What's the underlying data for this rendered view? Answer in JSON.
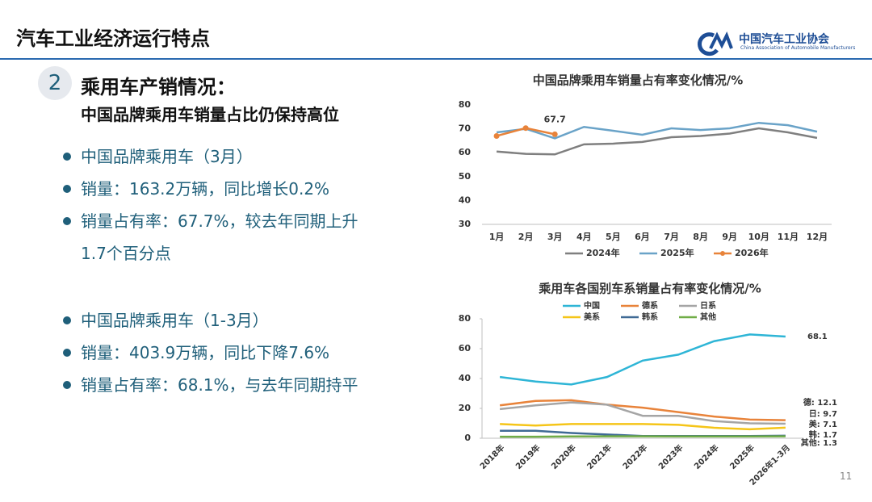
{
  "header": {
    "title": "汽车工业经济运行特点",
    "org_name": "中国汽车工业协会",
    "org_name_en": "China Association of Automobile Manufacturers"
  },
  "section": {
    "number": "2",
    "heading": "乘用车产销情况：",
    "subheading": "中国品牌乘用车销量占比仍保持高位"
  },
  "bullets": [
    "中国品牌乘用车（3月）",
    "销量：163.2万辆，同比增长0.2%",
    "销量占有率：67.7%，较去年同期上升1.7个百分点",
    "中国品牌乘用车（1-3月）",
    "销量：403.9万辆，同比下降7.6%",
    "销量占有率：68.1%，与去年同期持平"
  ],
  "page_number": "11",
  "chart_data": [
    {
      "type": "line",
      "title": "中国品牌乘用车销量占有率变化情况/%",
      "categories": [
        "1月",
        "2月",
        "3月",
        "4月",
        "5月",
        "6月",
        "7月",
        "8月",
        "9月",
        "10月",
        "11月",
        "12月"
      ],
      "ylim": [
        30,
        80
      ],
      "yticks": [
        30,
        40,
        50,
        60,
        70,
        80
      ],
      "grid": false,
      "legend": "bottom",
      "series": [
        {
          "name": "2024年",
          "color": "#7f7f7f",
          "markers": false,
          "values": [
            60.5,
            59.5,
            59.3,
            63.5,
            63.8,
            64.5,
            66.5,
            67,
            68,
            70.2,
            68.5,
            66.2
          ]
        },
        {
          "name": "2025年",
          "color": "#6aa3c8",
          "markers": false,
          "values": [
            68.5,
            70,
            66,
            70.8,
            69.2,
            67.5,
            70.2,
            69.5,
            70.2,
            72.5,
            71.5,
            68.8
          ]
        },
        {
          "name": "2026年",
          "color": "#e8833a",
          "markers": true,
          "values": [
            67,
            70.3,
            67.7,
            null,
            null,
            null,
            null,
            null,
            null,
            null,
            null,
            null
          ]
        }
      ]
    },
    {
      "type": "line",
      "title": "乘用车各国别车系销量占有率变化情况/%",
      "categories": [
        "2018年",
        "2019年",
        "2020年",
        "2021年",
        "2022年",
        "2023年",
        "2024年",
        "2025年",
        "2026年1-3月"
      ],
      "ylim": [
        0,
        80
      ],
      "yticks": [
        0,
        20,
        40,
        60,
        80
      ],
      "grid": false,
      "legend": "top",
      "series": [
        {
          "name": "中国",
          "color": "#2eb5d6",
          "values": [
            41,
            38,
            36,
            41,
            52,
            56,
            65,
            69.5,
            68.1
          ]
        },
        {
          "name": "德系",
          "color": "#e8833a",
          "values": [
            22,
            25,
            25.5,
            22.5,
            20.5,
            17.5,
            14.5,
            12.5,
            12.1
          ],
          "value_labels": [
            null,
            null,
            null,
            null,
            null,
            null,
            null,
            null,
            "德: 12.1"
          ]
        },
        {
          "name": "日系",
          "color": "#a5a5a5",
          "values": [
            19.5,
            22,
            24,
            22.5,
            15,
            15,
            11.5,
            10,
            9.7
          ],
          "value_labels": [
            null,
            null,
            null,
            null,
            null,
            null,
            null,
            null,
            "日: 9.7"
          ]
        },
        {
          "name": "美系",
          "color": "#f5c518",
          "values": [
            9.5,
            8.5,
            9.5,
            9.5,
            9.5,
            9,
            7,
            6,
            7.1
          ],
          "value_labels": [
            null,
            null,
            null,
            null,
            null,
            null,
            null,
            null,
            "美: 7.1"
          ]
        },
        {
          "name": "韩系",
          "color": "#3f6a95",
          "values": [
            5,
            5,
            3.5,
            2.5,
            1.5,
            1.5,
            1.5,
            1.5,
            1.7
          ],
          "value_labels": [
            null,
            null,
            null,
            null,
            null,
            null,
            null,
            null,
            "韩: 1.7"
          ]
        },
        {
          "name": "其他",
          "color": "#70ad47",
          "values": [
            1,
            1,
            1.2,
            1.3,
            1.3,
            1.2,
            1.2,
            1.2,
            1.3
          ],
          "value_labels": [
            null,
            null,
            null,
            null,
            null,
            null,
            null,
            null,
            "其他: 1.3"
          ]
        }
      ]
    }
  ]
}
